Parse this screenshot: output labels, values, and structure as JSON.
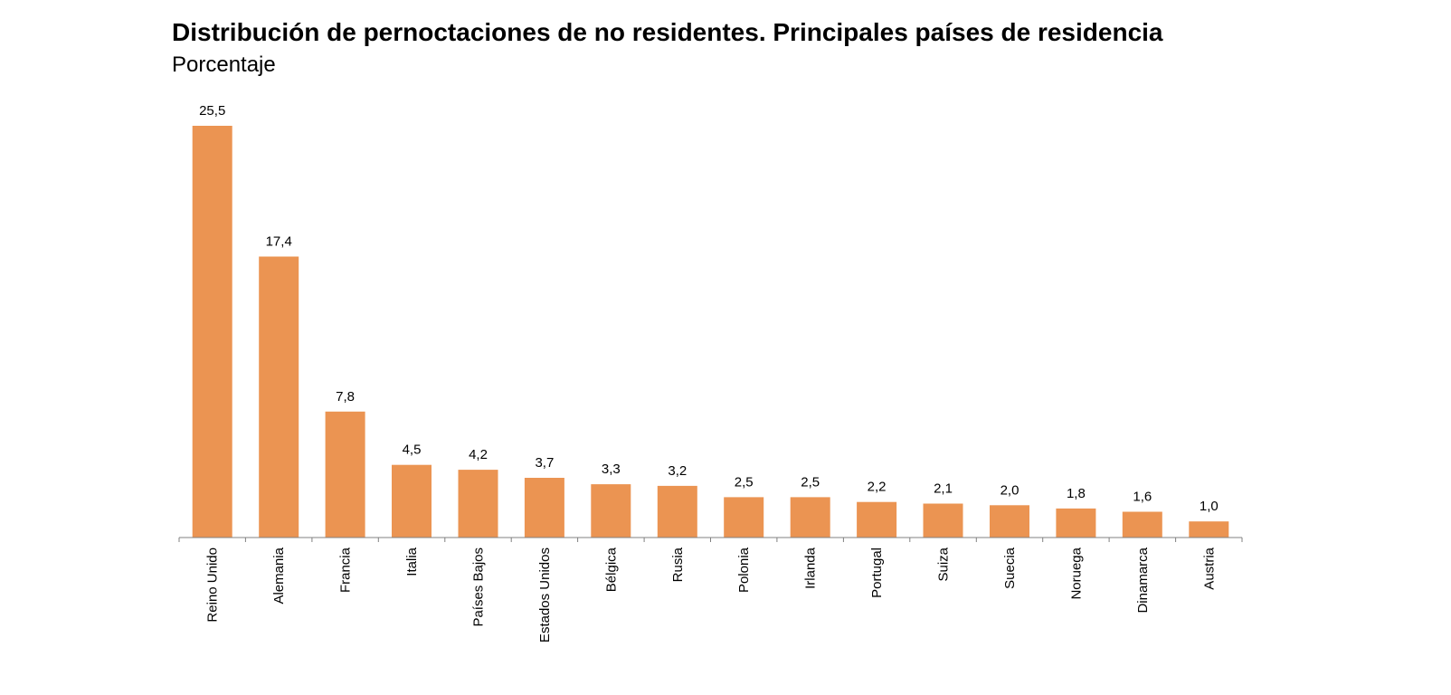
{
  "chart_data": {
    "type": "bar",
    "title": "Distribución de pernoctaciones de no residentes. Principales países de residencia",
    "subtitle": "Porcentaje",
    "xlabel": "",
    "ylabel": "",
    "categories": [
      "Reino Unido",
      "Alemania",
      "Francia",
      "Italia",
      "Países Bajos",
      "Estados Unidos",
      "Bélgica",
      "Rusia",
      "Polonia",
      "Irlanda",
      "Portugal",
      "Suiza",
      "Suecia",
      "Noruega",
      "Dinamarca",
      "Austria"
    ],
    "values": [
      25.5,
      17.4,
      7.8,
      4.5,
      4.2,
      3.7,
      3.3,
      3.2,
      2.5,
      2.5,
      2.2,
      2.1,
      2.0,
      1.8,
      1.6,
      1.0
    ],
    "data_labels": [
      "25,5",
      "17,4",
      "7,8",
      "4,5",
      "4,2",
      "3,7",
      "3,3",
      "3,2",
      "2,5",
      "2,5",
      "2,2",
      "2,1",
      "2,0",
      "1,8",
      "1,6",
      "1,0"
    ],
    "ylim": [
      0,
      25.5
    ],
    "grid": false,
    "legend": "none",
    "bar_color": "#eb9452",
    "axis_color": "#808080"
  }
}
